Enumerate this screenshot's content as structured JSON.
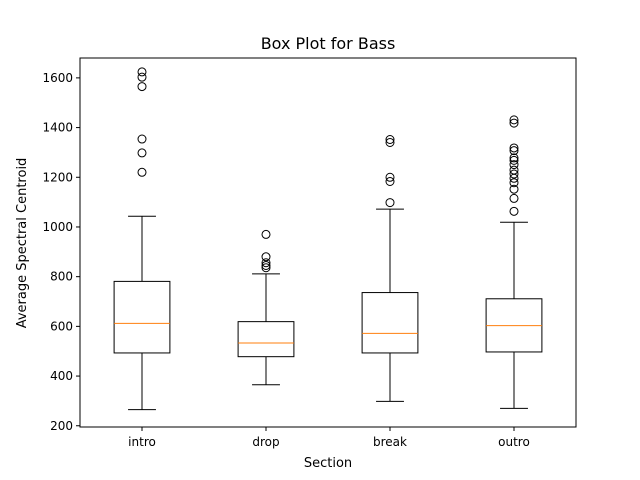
{
  "chart_data": {
    "type": "box",
    "title": "Box Plot for Bass",
    "xlabel": "Section",
    "ylabel": "Average Spectral Centroid",
    "categories": [
      "intro",
      "drop",
      "break",
      "outro"
    ],
    "ylim": [
      195,
      1680
    ],
    "yticks": [
      200,
      400,
      600,
      800,
      1000,
      1200,
      1400,
      1600
    ],
    "grid": false,
    "boxes": [
      {
        "category": "intro",
        "whisker_low": 265,
        "q1": 493,
        "median": 612,
        "q3": 781,
        "whisker_high": 1043,
        "outliers": [
          1220,
          1298,
          1354,
          1565,
          1603,
          1624
        ]
      },
      {
        "category": "drop",
        "whisker_low": 365,
        "q1": 478,
        "median": 533,
        "q3": 619,
        "whisker_high": 811,
        "outliers": [
          836,
          845,
          856,
          880,
          970
        ]
      },
      {
        "category": "break",
        "whisker_low": 298,
        "q1": 493,
        "median": 572,
        "q3": 736,
        "whisker_high": 1072,
        "outliers": [
          1098,
          1183,
          1200,
          1340,
          1352
        ]
      },
      {
        "category": "outro",
        "whisker_low": 270,
        "q1": 497,
        "median": 603,
        "q3": 711,
        "whisker_high": 1019,
        "outliers": [
          1063,
          1115,
          1152,
          1178,
          1196,
          1213,
          1229,
          1251,
          1268,
          1278,
          1307,
          1318,
          1418,
          1431
        ]
      }
    ],
    "colors": {
      "box": "#000000",
      "median": "#ff7f0e",
      "background": "#ffffff"
    }
  }
}
